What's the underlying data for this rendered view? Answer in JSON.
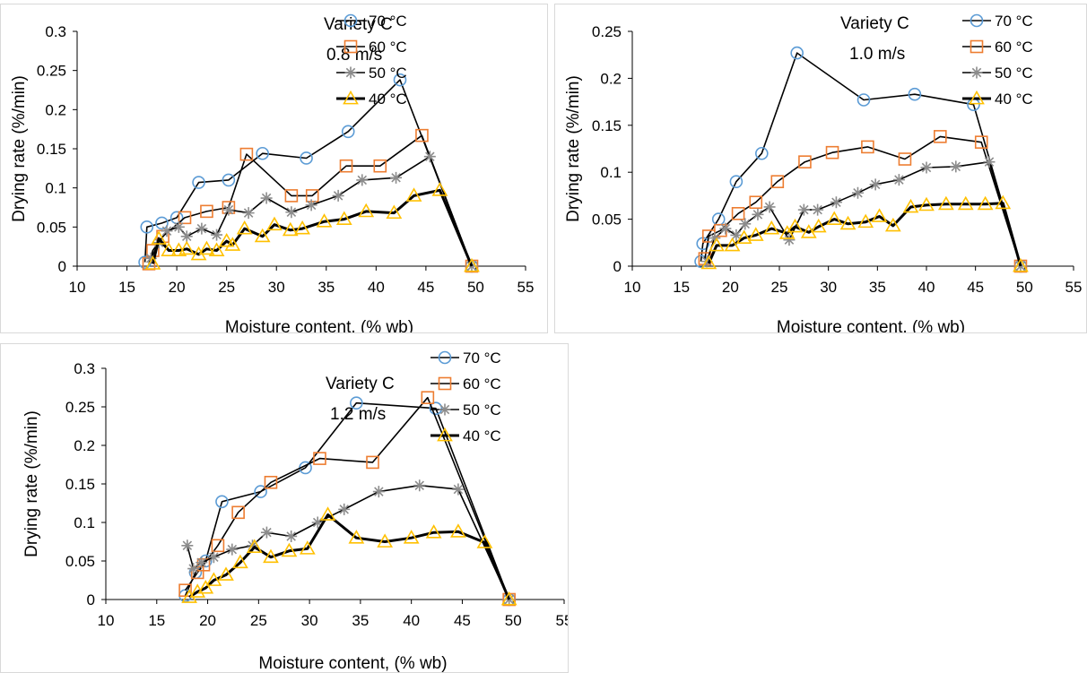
{
  "chart_data": [
    {
      "type": "line",
      "variety_label": "Variety C",
      "speed_label": "0.8 m/s",
      "xlabel": "Moisture content, (% wb)",
      "ylabel": "Drying rate (%/min)",
      "xlim": [
        10,
        55
      ],
      "ylim": [
        0,
        0.3
      ],
      "xticks": [
        "10",
        "15",
        "20",
        "25",
        "30",
        "35",
        "40",
        "45",
        "50",
        "55"
      ],
      "yticks": [
        "0",
        "0.05",
        "0.1",
        "0.15",
        "0.2",
        "0.25",
        "0.3"
      ],
      "legend_position": "top-right",
      "series": [
        {
          "name": "70 °C",
          "marker": "circle",
          "color": "#5b9bd5",
          "points": [
            [
              16.8,
              0.005
            ],
            [
              17,
              0.05
            ],
            [
              18.5,
              0.055
            ],
            [
              20,
              0.062
            ],
            [
              22.2,
              0.107
            ],
            [
              25.2,
              0.11
            ],
            [
              28.6,
              0.144
            ],
            [
              33,
              0.138
            ],
            [
              37.2,
              0.172
            ],
            [
              42.4,
              0.238
            ],
            [
              49.6,
              0.0
            ]
          ]
        },
        {
          "name": "60 °C",
          "marker": "square",
          "color": "#ed7d31",
          "points": [
            [
              17.2,
              0.003
            ],
            [
              17.6,
              0.02
            ],
            [
              18.6,
              0.038
            ],
            [
              20.8,
              0.062
            ],
            [
              23,
              0.07
            ],
            [
              25.2,
              0.075
            ],
            [
              27,
              0.143
            ],
            [
              31.5,
              0.09
            ],
            [
              33.6,
              0.09
            ],
            [
              37,
              0.128
            ],
            [
              40.4,
              0.128
            ],
            [
              44.6,
              0.167
            ],
            [
              49.6,
              0.0
            ]
          ]
        },
        {
          "name": "50 °C",
          "marker": "star",
          "color": "#8c8c8c",
          "points": [
            [
              17.4,
              0.01
            ],
            [
              18.2,
              0.03
            ],
            [
              19,
              0.045
            ],
            [
              20.2,
              0.05
            ],
            [
              21,
              0.038
            ],
            [
              22.5,
              0.048
            ],
            [
              24,
              0.04
            ],
            [
              25.2,
              0.072
            ],
            [
              27.2,
              0.068
            ],
            [
              29,
              0.087
            ],
            [
              31.5,
              0.069
            ],
            [
              33.5,
              0.078
            ],
            [
              36.2,
              0.09
            ],
            [
              38.6,
              0.11
            ],
            [
              42,
              0.113
            ],
            [
              45.4,
              0.14
            ],
            [
              49.6,
              0.0
            ]
          ]
        },
        {
          "name": "40 °C",
          "marker": "triangle",
          "color": "#ffc000",
          "points": [
            [
              17.6,
              0.003
            ],
            [
              18.2,
              0.035
            ],
            [
              19.2,
              0.02
            ],
            [
              20.2,
              0.02
            ],
            [
              21,
              0.022
            ],
            [
              22.2,
              0.015
            ],
            [
              23,
              0.022
            ],
            [
              24,
              0.02
            ],
            [
              25,
              0.032
            ],
            [
              25.6,
              0.027
            ],
            [
              26.8,
              0.048
            ],
            [
              28.6,
              0.038
            ],
            [
              29.8,
              0.053
            ],
            [
              31.4,
              0.046
            ],
            [
              32.6,
              0.048
            ],
            [
              34.8,
              0.057
            ],
            [
              36.8,
              0.06
            ],
            [
              39,
              0.07
            ],
            [
              41.8,
              0.068
            ],
            [
              43.8,
              0.09
            ],
            [
              46.4,
              0.097
            ],
            [
              49.6,
              0.0
            ]
          ]
        }
      ]
    },
    {
      "type": "line",
      "variety_label": "Variety C",
      "speed_label": "1.0 m/s",
      "xlabel": "Moisture content, (% wb)",
      "ylabel": "Drying rate (%/min)",
      "xlim": [
        10,
        55
      ],
      "ylim": [
        0,
        0.25
      ],
      "xticks": [
        "10",
        "15",
        "20",
        "25",
        "30",
        "35",
        "40",
        "45",
        "50",
        "55"
      ],
      "yticks": [
        "0",
        "0.05",
        "0.1",
        "0.15",
        "0.2",
        "0.25"
      ],
      "legend_position": "top-right",
      "series": [
        {
          "name": "70 °C",
          "marker": "circle",
          "color": "#5b9bd5",
          "points": [
            [
              17,
              0.005
            ],
            [
              17.2,
              0.024
            ],
            [
              18.8,
              0.05
            ],
            [
              20.6,
              0.09
            ],
            [
              23.2,
              0.12
            ],
            [
              26.8,
              0.227
            ],
            [
              33.6,
              0.177
            ],
            [
              38.8,
              0.183
            ],
            [
              44.8,
              0.172
            ],
            [
              49.6,
              0.0
            ]
          ]
        },
        {
          "name": "60 °C",
          "marker": "square",
          "color": "#ed7d31",
          "points": [
            [
              17.4,
              0.008
            ],
            [
              17.8,
              0.032
            ],
            [
              19,
              0.038
            ],
            [
              20.8,
              0.056
            ],
            [
              22.6,
              0.068
            ],
            [
              24.8,
              0.09
            ],
            [
              27.6,
              0.111
            ],
            [
              30.4,
              0.121
            ],
            [
              34,
              0.127
            ],
            [
              37.8,
              0.114
            ],
            [
              41.4,
              0.138
            ],
            [
              45.6,
              0.132
            ],
            [
              49.6,
              0.0
            ]
          ]
        },
        {
          "name": "50 °C",
          "marker": "star",
          "color": "#8c8c8c",
          "points": [
            [
              17.6,
              0.005
            ],
            [
              18.4,
              0.03
            ],
            [
              19.5,
              0.04
            ],
            [
              20.6,
              0.033
            ],
            [
              21.5,
              0.045
            ],
            [
              22.8,
              0.055
            ],
            [
              24,
              0.063
            ],
            [
              26,
              0.028
            ],
            [
              27.5,
              0.06
            ],
            [
              28.9,
              0.06
            ],
            [
              30.8,
              0.068
            ],
            [
              33,
              0.078
            ],
            [
              34.8,
              0.087
            ],
            [
              37.2,
              0.092
            ],
            [
              40,
              0.105
            ],
            [
              43,
              0.106
            ],
            [
              46.4,
              0.111
            ],
            [
              49.6,
              0.0
            ]
          ]
        },
        {
          "name": "40 °C",
          "marker": "triangle",
          "color": "#ffc000",
          "points": [
            [
              17.8,
              0.003
            ],
            [
              18.6,
              0.022
            ],
            [
              20.2,
              0.022
            ],
            [
              21.4,
              0.03
            ],
            [
              22.6,
              0.033
            ],
            [
              24.2,
              0.04
            ],
            [
              25.8,
              0.035
            ],
            [
              26.6,
              0.042
            ],
            [
              28,
              0.036
            ],
            [
              29,
              0.042
            ],
            [
              30.6,
              0.05
            ],
            [
              32,
              0.045
            ],
            [
              33.8,
              0.047
            ],
            [
              35.2,
              0.053
            ],
            [
              36.6,
              0.043
            ],
            [
              38.4,
              0.063
            ],
            [
              40,
              0.065
            ],
            [
              42,
              0.066
            ],
            [
              44,
              0.066
            ],
            [
              46,
              0.066
            ],
            [
              47.8,
              0.067
            ],
            [
              49.6,
              0.0
            ]
          ]
        }
      ]
    },
    {
      "type": "line",
      "variety_label": "Variety C",
      "speed_label": "1.2 m/s",
      "xlabel": "Moisture content, (% wb)",
      "ylabel": "Drying rate (%/min)",
      "xlim": [
        10,
        55
      ],
      "ylim": [
        0,
        0.3
      ],
      "xticks": [
        "10",
        "15",
        "20",
        "25",
        "30",
        "35",
        "40",
        "45",
        "50",
        "55"
      ],
      "yticks": [
        "0",
        "0.05",
        "0.1",
        "0.15",
        "0.2",
        "0.25",
        "0.3"
      ],
      "legend_position": "top-right",
      "series": [
        {
          "name": "70 °C",
          "marker": "circle",
          "color": "#5b9bd5",
          "points": [
            [
              17.8,
              0.005
            ],
            [
              18.8,
              0.035
            ],
            [
              19.8,
              0.05
            ],
            [
              21.4,
              0.127
            ],
            [
              25.2,
              0.14
            ],
            [
              29.6,
              0.171
            ],
            [
              34.6,
              0.255
            ],
            [
              42.4,
              0.248
            ],
            [
              49.6,
              0.0
            ]
          ]
        },
        {
          "name": "60 °C",
          "marker": "square",
          "color": "#ed7d31",
          "points": [
            [
              17.8,
              0.012
            ],
            [
              19,
              0.035
            ],
            [
              19.6,
              0.045
            ],
            [
              21,
              0.07
            ],
            [
              23,
              0.113
            ],
            [
              26.2,
              0.152
            ],
            [
              31,
              0.183
            ],
            [
              36.2,
              0.178
            ],
            [
              41.6,
              0.262
            ],
            [
              49.6,
              0.0
            ]
          ]
        },
        {
          "name": "50 °C",
          "marker": "star",
          "color": "#8c8c8c",
          "points": [
            [
              18,
              0.07
            ],
            [
              18.6,
              0.04
            ],
            [
              19.4,
              0.048
            ],
            [
              20.6,
              0.055
            ],
            [
              22.4,
              0.065
            ],
            [
              24.4,
              0.07
            ],
            [
              25.8,
              0.087
            ],
            [
              28.2,
              0.082
            ],
            [
              30.8,
              0.1
            ],
            [
              33.4,
              0.117
            ],
            [
              36.8,
              0.14
            ],
            [
              40.8,
              0.148
            ],
            [
              44.6,
              0.143
            ],
            [
              49.6,
              0.0
            ]
          ]
        },
        {
          "name": "40 °C",
          "marker": "triangle",
          "color": "#ffc000",
          "points": [
            [
              18.2,
              0.003
            ],
            [
              19,
              0.01
            ],
            [
              19.8,
              0.015
            ],
            [
              20.6,
              0.025
            ],
            [
              21.8,
              0.032
            ],
            [
              23.2,
              0.048
            ],
            [
              24.6,
              0.068
            ],
            [
              26.2,
              0.055
            ],
            [
              28,
              0.063
            ],
            [
              29.8,
              0.066
            ],
            [
              31.8,
              0.11
            ],
            [
              34.6,
              0.08
            ],
            [
              37.4,
              0.075
            ],
            [
              40,
              0.08
            ],
            [
              42.2,
              0.087
            ],
            [
              44.6,
              0.088
            ],
            [
              47.2,
              0.074
            ],
            [
              49.6,
              0.0
            ]
          ]
        }
      ]
    }
  ]
}
